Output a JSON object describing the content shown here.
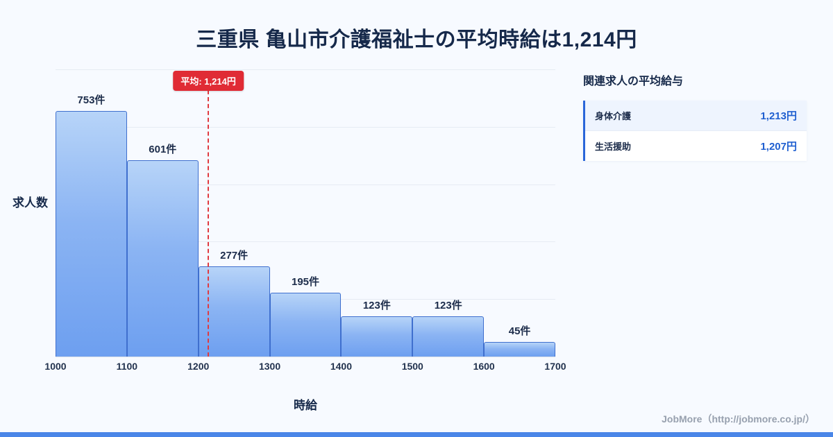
{
  "page": {
    "title": "三重県 亀山市介護福祉士の平均時給は1,214円",
    "footer": "JobMore（http://jobmore.co.jp/）"
  },
  "chart_data": {
    "type": "bar",
    "title": "三重県 亀山市介護福祉士の平均時給は1,214円",
    "xlabel": "時給",
    "ylabel": "求人数",
    "x_ticks": [
      "1000",
      "1100",
      "1200",
      "1300",
      "1400",
      "1500",
      "1600",
      "1700"
    ],
    "categories": [
      "1000-1100",
      "1100-1200",
      "1200-1300",
      "1300-1400",
      "1400-1500",
      "1500-1600",
      "1600-1700"
    ],
    "values": [
      753,
      601,
      277,
      195,
      123,
      123,
      45
    ],
    "bar_labels": [
      "753件",
      "601件",
      "277件",
      "195件",
      "123件",
      "123件",
      "45件"
    ],
    "ylim": [
      0,
      880
    ],
    "grid": true,
    "legend": "none",
    "average": {
      "value": 1214,
      "label": "平均: 1,214円"
    },
    "accent_colors": {
      "bar_fill_top": "#b7d4f8",
      "bar_fill_bottom": "#6d9ff0",
      "bar_border": "#3f6fce",
      "average_line": "#e02b35"
    }
  },
  "side_panel": {
    "heading": "関連求人の平均給与",
    "rows": [
      {
        "label": "身体介護",
        "value": "1,213円"
      },
      {
        "label": "生活援助",
        "value": "1,207円"
      }
    ]
  }
}
